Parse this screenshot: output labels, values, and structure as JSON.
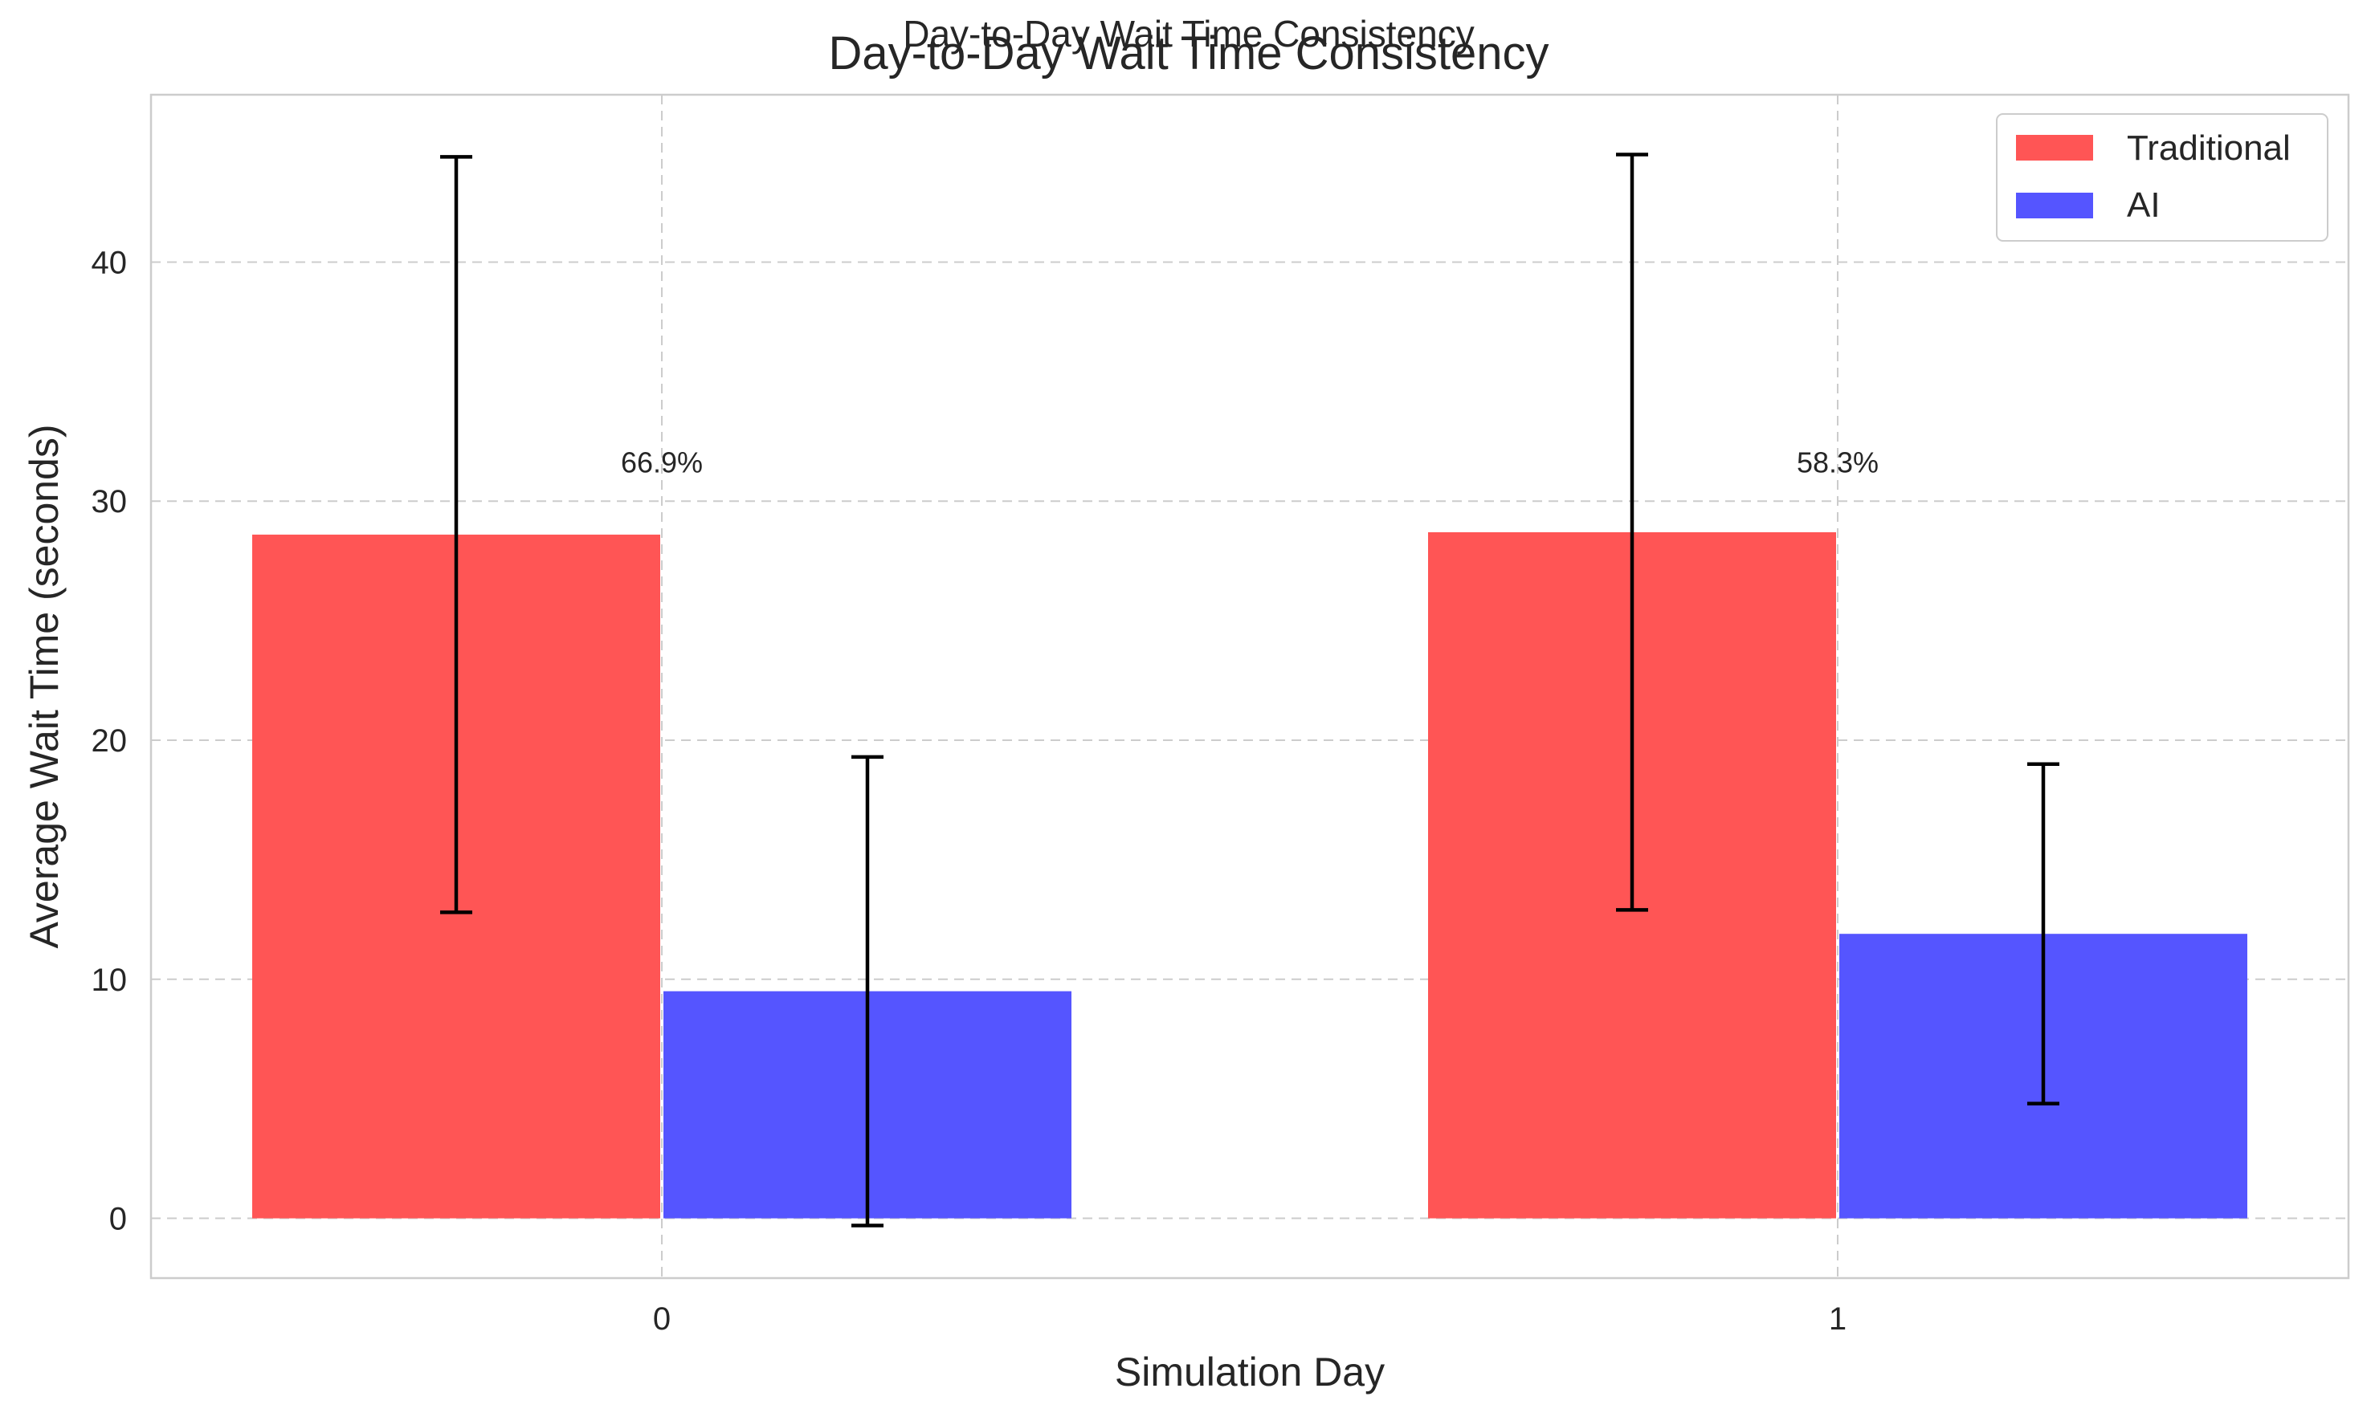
{
  "chart_data": {
    "type": "bar",
    "title": "Day-to-Day Wait Time Consistency",
    "subtitle": "Day-to-Day Wait Time Consistency",
    "xlabel": "Simulation Day",
    "ylabel": "Average Wait Time (seconds)",
    "categories": [
      "0",
      "1"
    ],
    "ylim": [
      -2.5,
      47
    ],
    "yticks": [
      0,
      10,
      20,
      30,
      40
    ],
    "grid": true,
    "legend_position": "top-right",
    "series": [
      {
        "name": "Traditional",
        "color": "#ff5555",
        "values": [
          28.6,
          28.7
        ],
        "errors": [
          15.8,
          15.8
        ]
      },
      {
        "name": "AI",
        "color": "#5555ff",
        "values": [
          9.5,
          11.9
        ],
        "errors": [
          9.8,
          7.1
        ]
      }
    ],
    "annotations": [
      {
        "category": "0",
        "text": "66.9%",
        "y": 31.2
      },
      {
        "category": "1",
        "text": "58.3%",
        "y": 31.2
      }
    ]
  }
}
